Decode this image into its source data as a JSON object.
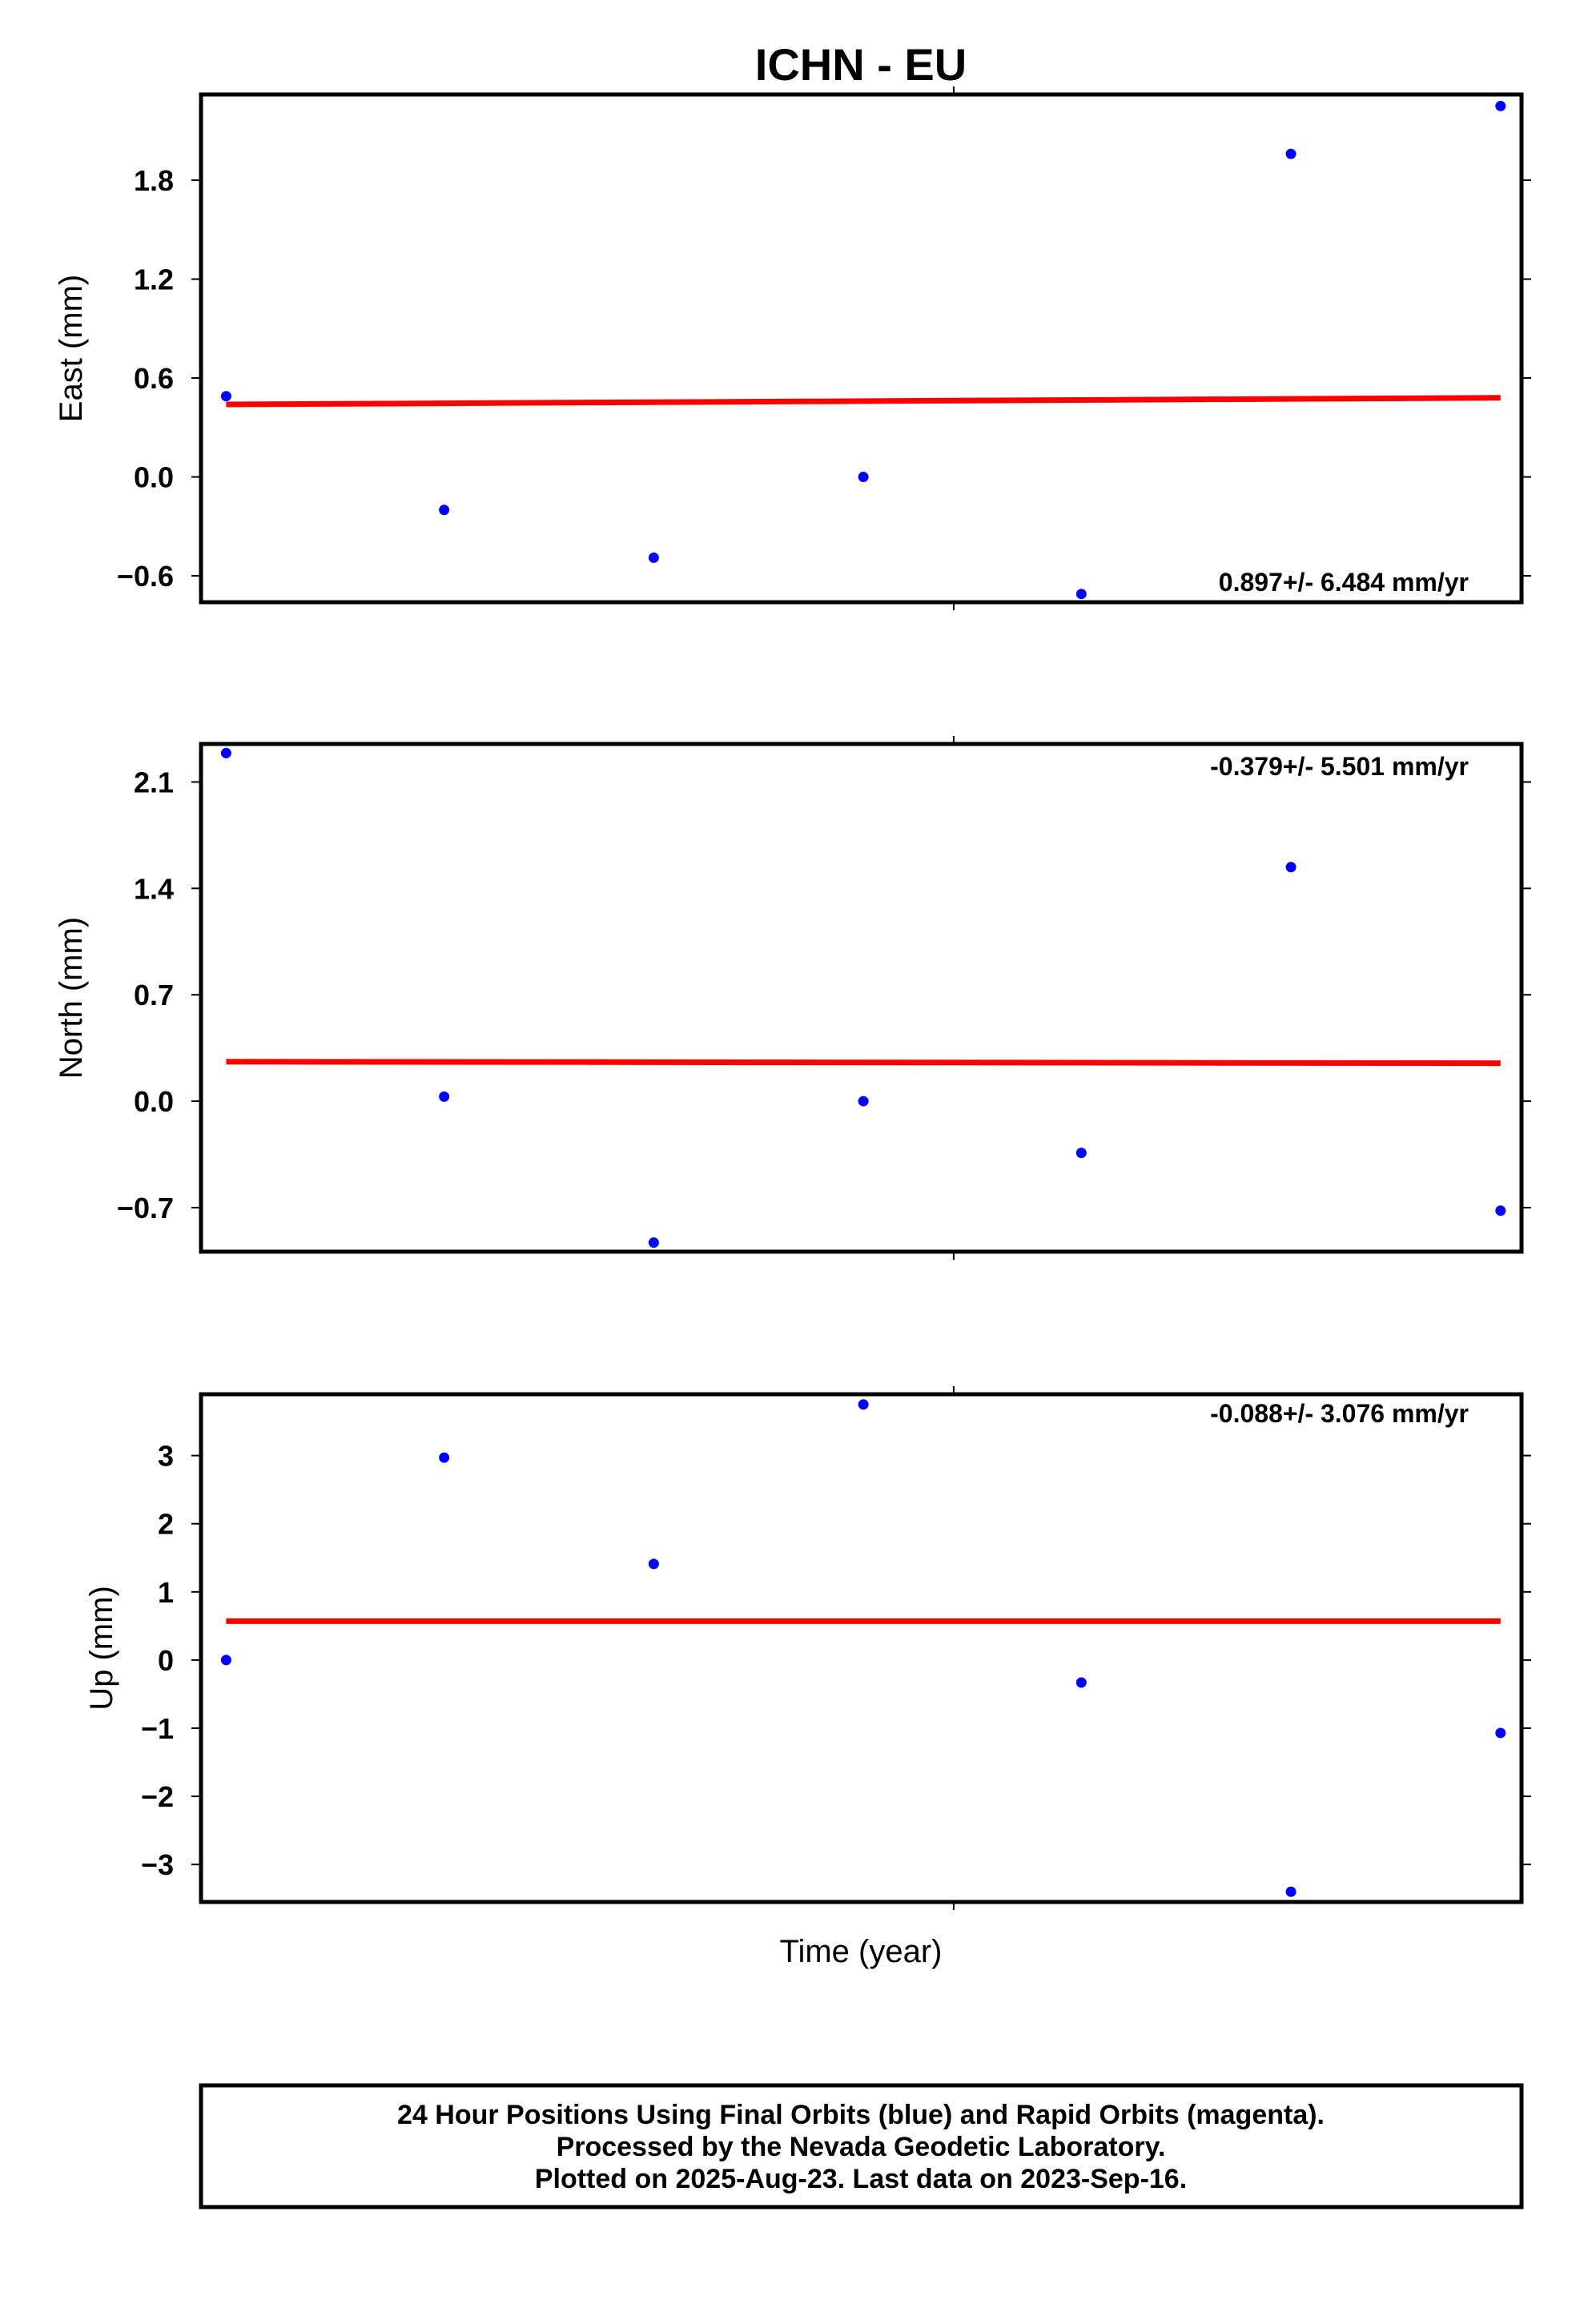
{
  "chart_data": [
    {
      "type": "scatter",
      "title": "ICHN - EU",
      "xlabel": "",
      "ylabel": "East (mm)",
      "yticks": [
        1.8,
        1.2,
        0.6,
        0.0,
        -0.6
      ],
      "ytick_labels": [
        "1.8",
        "1.2",
        "0.6",
        "0.0",
        "−0.6"
      ],
      "ylim": [
        -0.76,
        2.32
      ],
      "xlim": [
        0,
        6.3
      ],
      "x": [
        0.12,
        1.16,
        2.16,
        3.16,
        4.2,
        5.2,
        6.2
      ],
      "values": [
        0.49,
        -0.2,
        -0.49,
        0.0,
        -0.71,
        1.96,
        2.25
      ],
      "trend": {
        "start": 0.44,
        "end": 0.48,
        "color": "#ff0000"
      },
      "point_color": "#0000ff",
      "rate_label": "0.897+/- 6.484 mm/yr",
      "rate_position": "bottom-right",
      "grid": false
    },
    {
      "type": "scatter",
      "title": "",
      "xlabel": "",
      "ylabel": "North (mm)",
      "yticks": [
        2.1,
        1.4,
        0.7,
        0.0,
        -0.7
      ],
      "ytick_labels": [
        "2.1",
        "1.4",
        "0.7",
        "0.0",
        "−0.7"
      ],
      "ylim": [
        -0.99,
        2.35
      ],
      "xlim": [
        0,
        6.3
      ],
      "x": [
        0.12,
        1.16,
        2.16,
        3.16,
        4.2,
        5.2,
        6.2
      ],
      "values": [
        2.29,
        0.03,
        -0.93,
        0.0,
        -0.34,
        1.54,
        -0.72
      ],
      "trend": {
        "start": 0.26,
        "end": 0.25,
        "color": "#ff0000"
      },
      "point_color": "#0000ff",
      "rate_label": "-0.379+/- 5.501 mm/yr",
      "rate_position": "top-right",
      "grid": false
    },
    {
      "type": "scatter",
      "title": "",
      "xlabel": "Time (year)",
      "ylabel": "Up (mm)",
      "yticks": [
        3,
        2,
        1,
        0,
        -1,
        -2,
        -3
      ],
      "ytick_labels": [
        "3",
        "2",
        "1",
        "0",
        "−1",
        "−2",
        "−3"
      ],
      "ylim": [
        -3.55,
        3.9
      ],
      "xlim": [
        0,
        6.3
      ],
      "x": [
        0.12,
        1.16,
        2.16,
        3.16,
        4.2,
        5.2,
        6.2
      ],
      "values": [
        0.0,
        2.97,
        1.41,
        3.75,
        -0.33,
        -3.4,
        -1.07
      ],
      "trend": {
        "start": 0.57,
        "end": 0.57,
        "color": "#ff0000"
      },
      "point_color": "#0000ff",
      "rate_label": "-0.088+/- 3.076 mm/yr",
      "rate_position": "top-right",
      "grid": false
    }
  ],
  "footer": {
    "line1": "24 Hour Positions Using Final Orbits (blue) and Rapid Orbits (magenta).",
    "line2": "Processed by the Nevada Geodetic Laboratory.",
    "line3": "Plotted on 2025-Aug-23. Last data on 2023-Sep-16."
  }
}
